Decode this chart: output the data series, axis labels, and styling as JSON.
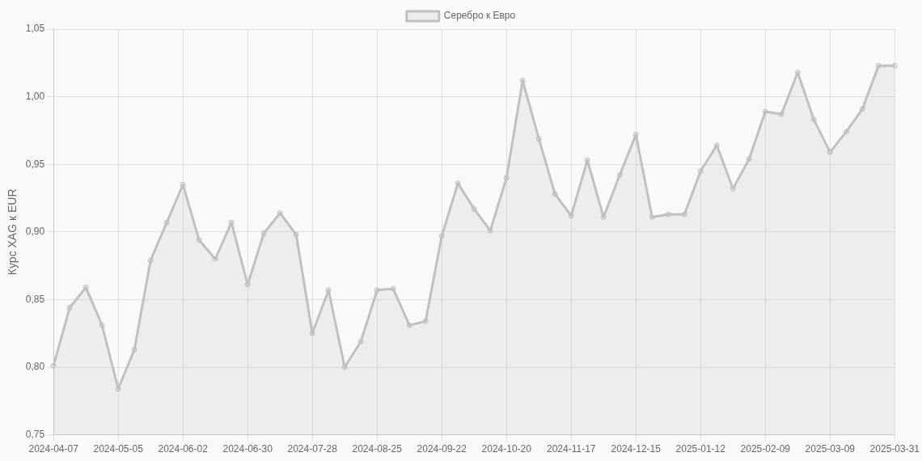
{
  "chart_data": {
    "type": "area",
    "ylabel": "Курс XAG к EUR",
    "categories": [
      "2024-04-07",
      null,
      null,
      null,
      "2024-05-05",
      null,
      null,
      null,
      "2024-06-02",
      null,
      null,
      null,
      "2024-06-30",
      null,
      null,
      null,
      "2024-07-28",
      null,
      null,
      null,
      "2024-08-25",
      null,
      null,
      null,
      "2024-09-22",
      null,
      null,
      null,
      "2024-10-20",
      null,
      null,
      null,
      "2024-11-17",
      null,
      null,
      null,
      "2024-12-15",
      null,
      null,
      null,
      "2025-01-12",
      null,
      null,
      null,
      "2025-02-09",
      null,
      null,
      null,
      "2025-03-09",
      null,
      null,
      null,
      "2025-03-31"
    ],
    "series": [
      {
        "name": "Серебро к Евро",
        "color": "#c0c0c0",
        "values": [
          0.801,
          0.844,
          0.859,
          0.831,
          0.784,
          0.813,
          0.879,
          0.907,
          0.935,
          0.894,
          0.88,
          0.907,
          0.861,
          0.899,
          0.914,
          0.898,
          0.825,
          0.857,
          0.8,
          0.819,
          0.857,
          0.858,
          0.831,
          0.834,
          0.897,
          0.936,
          0.917,
          0.901,
          0.94,
          1.012,
          0.969,
          0.928,
          0.912,
          0.953,
          0.911,
          0.942,
          0.972,
          0.911,
          0.913,
          0.913,
          0.945,
          0.964,
          0.932,
          0.954,
          0.989,
          0.987,
          1.018,
          0.983,
          0.959,
          0.974,
          0.991,
          1.023,
          1.023
        ]
      }
    ],
    "ylim": [
      0.75,
      1.05
    ],
    "yticks": [
      {
        "value": 0.75,
        "label": "0,75"
      },
      {
        "value": 0.8,
        "label": "0,80"
      },
      {
        "value": 0.85,
        "label": "0,85"
      },
      {
        "value": 0.9,
        "label": "0,90"
      },
      {
        "value": 0.95,
        "label": "0,95"
      },
      {
        "value": 1.0,
        "label": "1,00"
      },
      {
        "value": 1.05,
        "label": "1,05"
      }
    ],
    "grid": true,
    "legend": "top",
    "marker": "circle"
  }
}
